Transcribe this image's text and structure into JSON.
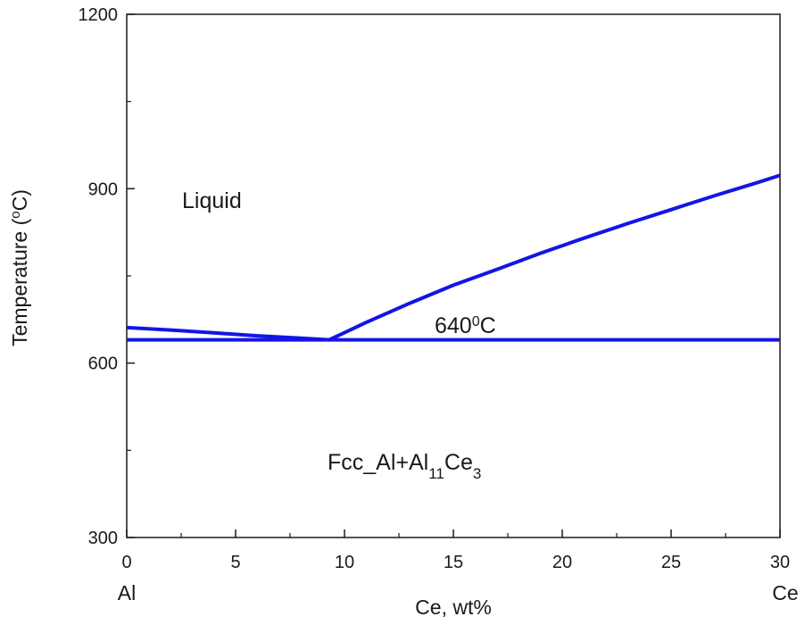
{
  "chart_data": {
    "type": "line",
    "title": "",
    "xlabel": "Ce, wt%",
    "ylabel": {
      "pre": "Temperature (",
      "sup": "o",
      "post": "C)"
    },
    "xlim": [
      0,
      30
    ],
    "ylim": [
      300,
      1200
    ],
    "x_ticks": [
      0,
      5,
      10,
      15,
      20,
      25,
      30
    ],
    "x_minor_ticks": [
      2.5,
      7.5,
      12.5,
      17.5,
      22.5,
      27.5
    ],
    "y_ticks": [
      300,
      600,
      900,
      1200
    ],
    "y_minor_ticks": [
      450,
      750,
      1050
    ],
    "x_end_labels": {
      "left": "Al",
      "right": "Ce"
    },
    "grid": false,
    "line_color": "#1414e6",
    "series": [
      {
        "points": [
          [
            0,
            661
          ],
          [
            2,
            657
          ],
          [
            4,
            652
          ],
          [
            6,
            647
          ],
          [
            8,
            643
          ],
          [
            9.3,
            640
          ]
        ]
      },
      {
        "points": [
          [
            9.3,
            640
          ],
          [
            11,
            670
          ],
          [
            13,
            703
          ],
          [
            15,
            734
          ],
          [
            17,
            761
          ],
          [
            19,
            789
          ],
          [
            21,
            815
          ],
          [
            23,
            840
          ],
          [
            25,
            864
          ],
          [
            27,
            888
          ],
          [
            29,
            911
          ],
          [
            30,
            923
          ]
        ]
      },
      {
        "points": [
          [
            0,
            640
          ],
          [
            30,
            640
          ]
        ]
      }
    ],
    "annotations": {
      "liquid": "Liquid",
      "eutectic": {
        "pre": "640",
        "sup": "0",
        "post": "C"
      },
      "solid": {
        "a": "Fcc_Al+Al",
        "sub1": "11",
        "b": "Ce",
        "sub2": "3"
      }
    }
  }
}
